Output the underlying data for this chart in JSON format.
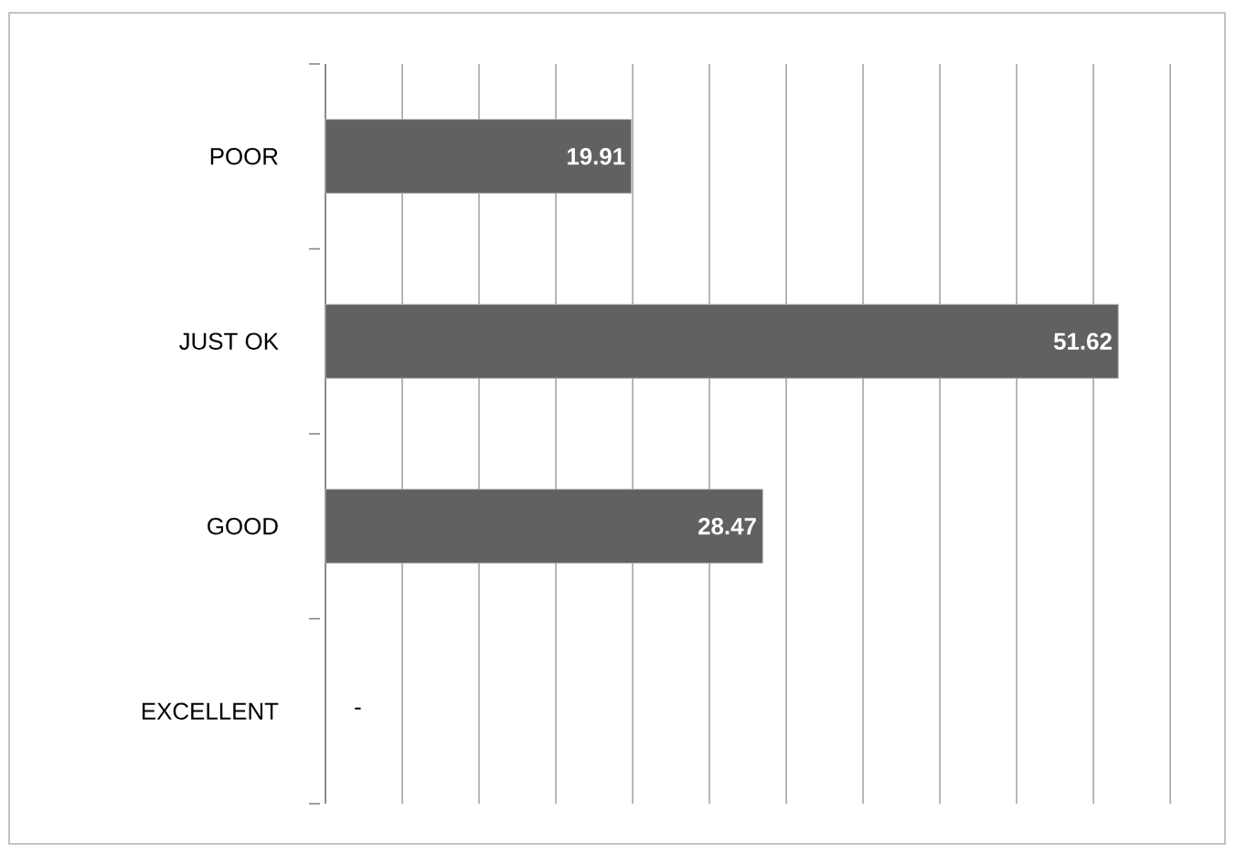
{
  "chart_data": {
    "type": "bar",
    "orientation": "horizontal",
    "categories": [
      "POOR",
      "JUST OK",
      "GOOD",
      "EXCELLENT"
    ],
    "values": [
      19.91,
      51.62,
      28.47,
      null
    ],
    "value_labels": [
      "19.91",
      "51.62",
      "28.47",
      "-"
    ],
    "color": "#616161",
    "tick_labels": "y",
    "grid": "x"
  }
}
